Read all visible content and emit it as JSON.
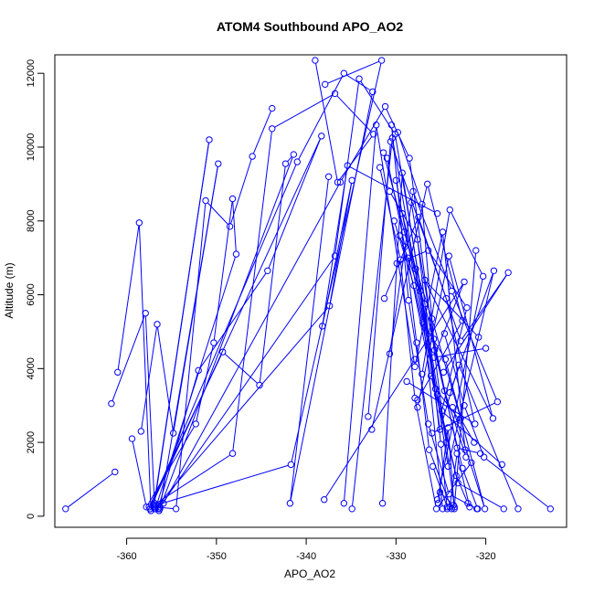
{
  "chart_data": {
    "type": "line",
    "title": "ATOM4 Southbound APO_AO2",
    "xlabel": "APO_AO2",
    "ylabel": "Altitude (m)",
    "xlim": [
      -368.0,
      -311.0
    ],
    "ylim": [
      -300,
      12500
    ],
    "xticks": [
      -360,
      -350,
      -340,
      -330,
      -320
    ],
    "xtick_labels": [
      "-360",
      "-350",
      "-340",
      "-330",
      "-320"
    ],
    "yticks": [
      0,
      2000,
      4000,
      6000,
      8000,
      10000,
      12000
    ],
    "ytick_labels": [
      "0",
      "2000",
      "4000",
      "6000",
      "8000",
      "10000",
      "12000"
    ],
    "grid": false,
    "legend": "none",
    "line_color": "#0000ff",
    "marker": "open-circle",
    "series": [
      {
        "x": [
          -366.8,
          -361.3
        ],
        "y": [
          200,
          1200
        ]
      },
      {
        "x": [
          -361.0,
          -358.6,
          -357.3,
          -356.8,
          -354.5,
          -351.2,
          -348.5,
          -346.0,
          -343.8
        ],
        "y": [
          3900,
          7950,
          150,
          250,
          200,
          8550,
          7850,
          9750,
          11050
        ]
      },
      {
        "x": [
          -361.7,
          -357.9,
          -356.9,
          -350.8,
          -357.0
        ],
        "y": [
          3050,
          5500,
          350,
          10200,
          250
        ]
      },
      {
        "x": [
          -358.4,
          -356.6,
          -354.8,
          -349.8,
          -356.3
        ],
        "y": [
          2300,
          5200,
          2250,
          9550,
          200
        ]
      },
      {
        "x": [
          -359.4,
          -357.8,
          -352.3,
          -350.3,
          -348.2,
          -347.8,
          -356.8
        ],
        "y": [
          2100,
          250,
          2500,
          4700,
          8600,
          7100,
          200
        ]
      },
      {
        "x": [
          -357.5,
          -349.3,
          -345.2,
          -342.3,
          -341.4,
          -356.4
        ],
        "y": [
          250,
          4450,
          3550,
          9550,
          9800,
          150
        ]
      },
      {
        "x": [
          -356.5,
          -352.0,
          -344.3,
          -338.3,
          -357.4
        ],
        "y": [
          200,
          3950,
          6650,
          10300,
          200
        ]
      },
      {
        "x": [
          -357.0,
          -348.2,
          -343.8,
          -336.8,
          -332.5,
          -336.5,
          -339.0
        ],
        "y": [
          300,
          1700,
          10500,
          11450,
          10350,
          9050,
          12350
        ]
      },
      {
        "x": [
          -356.7,
          -341.7,
          -331.6,
          -337.9
        ],
        "y": [
          300,
          1400,
          12350,
          11700
        ]
      },
      {
        "x": [
          -357.4,
          -341.0,
          -335.8,
          -332.6,
          -341.8,
          -337.5
        ],
        "y": [
          200,
          9600,
          12000,
          11500,
          350,
          9200
        ]
      },
      {
        "x": [
          -356.9,
          -337.4,
          -334.9,
          -338.2,
          -335.4,
          -325.4
        ],
        "y": [
          200,
          5700,
          9100,
          5150,
          9500,
          8200
        ]
      },
      {
        "x": [
          -356.3,
          -336.8,
          -334.1,
          -330.1,
          -324.4
        ],
        "y": [
          250,
          7050,
          11850,
          10350,
          2000
        ]
      },
      {
        "x": [
          -355.9,
          -336.2,
          -331.2,
          -328.5,
          -323.5,
          -321.1
        ],
        "y": [
          350,
          9050,
          11100,
          9700,
          250,
          7200
        ]
      },
      {
        "x": [
          -335.8,
          -332.2,
          -327.9,
          -324.8,
          -322.3
        ],
        "y": [
          350,
          10600,
          4050,
          7700,
          1800
        ]
      },
      {
        "x": [
          -334.9,
          -330.4,
          -325.6,
          -322.9
        ],
        "y": [
          200,
          10250,
          3450,
          2600
        ]
      },
      {
        "x": [
          -331.5,
          -329.3,
          -324.2,
          -319.1,
          -324.0
        ],
        "y": [
          350,
          9300,
          1350,
          6650,
          3350
        ]
      },
      {
        "x": [
          -338.0,
          -327.9,
          -322.4,
          -325.8,
          -320.0
        ],
        "y": [
          450,
          4250,
          6350,
          4300,
          4550
        ]
      },
      {
        "x": [
          -333.1,
          -330.6,
          -324.4,
          -321.2,
          -328.8
        ],
        "y": [
          2700,
          10150,
          5900,
          2500,
          3650
        ]
      },
      {
        "x": [
          -332.7,
          -326.5,
          -322.6,
          -327.6
        ],
        "y": [
          2350,
          9000,
          5300,
          3150
        ]
      },
      {
        "x": [
          -327.6,
          -324.1,
          -319.2,
          -326.8,
          -320.8
        ],
        "y": [
          2950,
          7050,
          2650,
          6400,
          4850
        ]
      },
      {
        "x": [
          -327.1,
          -324.0,
          -320.3,
          -325.4
        ],
        "y": [
          3850,
          8300,
          6500,
          450
        ]
      },
      {
        "x": [
          -330.7,
          -328.1,
          -323.8,
          -318.7,
          -326.0
        ],
        "y": [
          4400,
          8800,
          6100,
          3100,
          2250
        ]
      },
      {
        "x": [
          -331.3,
          -327.5,
          -322.8,
          -317.5,
          -324.7
        ],
        "y": [
          5900,
          8100,
          4750,
          6600,
          3900
        ]
      },
      {
        "x": [
          -329.9,
          -326.4,
          -322.1,
          -324.9,
          -318.2
        ],
        "y": [
          6850,
          7200,
          5650,
          2850,
          1400
        ]
      },
      {
        "x": [
          -329.1,
          -326.0,
          -322.8,
          -321.3
        ],
        "y": [
          7700,
          5350,
          2650,
          2000
        ]
      },
      {
        "x": [
          -328.3,
          -325.8,
          -323.2,
          -320.6
        ],
        "y": [
          8500,
          4800,
          1850,
          1700
        ]
      },
      {
        "x": [
          -330.0,
          -327.0,
          -324.5,
          -320.1,
          -323.7
        ],
        "y": [
          9100,
          5250,
          4250,
          200,
          2950
        ]
      },
      {
        "x": [
          -331.4,
          -327.3,
          -325.1,
          -323.0,
          -316.4
        ],
        "y": [
          9850,
          6100,
          2350,
          4100,
          200
        ]
      },
      {
        "x": [
          -331.8,
          -329.5,
          -327.9,
          -325.5,
          -321.6
        ],
        "y": [
          9450,
          6950,
          3200,
          200,
          1450
        ]
      },
      {
        "x": [
          -329.8,
          -327.1,
          -325.7,
          -322.6,
          -320.9
        ],
        "y": [
          10400,
          8450,
          4500,
          1300,
          200
        ]
      },
      {
        "x": [
          -330.5,
          -328.6,
          -326.4,
          -324.1,
          -321.0
        ],
        "y": [
          10600,
          5850,
          2500,
          600,
          200
        ]
      },
      {
        "x": [
          -331.0,
          -329.0,
          -327.7,
          -326.3,
          -323.8
        ],
        "y": [
          9700,
          7300,
          4700,
          1800,
          200
        ]
      },
      {
        "x": [
          -330.2,
          -328.0,
          -325.4,
          -323.3,
          -322.0
        ],
        "y": [
          8000,
          6250,
          3300,
          1100,
          350
        ]
      },
      {
        "x": [
          -329.6,
          -326.8,
          -324.6,
          -322.2
        ],
        "y": [
          7600,
          5750,
          3400,
          1600
        ]
      },
      {
        "x": [
          -328.7,
          -326.1,
          -323.1,
          -318.0
        ],
        "y": [
          7000,
          3800,
          900,
          200
        ]
      },
      {
        "x": [
          -330.7,
          -327.6,
          -325.0,
          -324.3
        ],
        "y": [
          8800,
          7500,
          1950,
          200
        ]
      },
      {
        "x": [
          -329.3,
          -327.8,
          -326.9,
          -324.8
        ],
        "y": [
          8200,
          6700,
          5200,
          200
        ]
      },
      {
        "x": [
          -324.6,
          -322.4,
          -320.2,
          -312.8
        ],
        "y": [
          4950,
          3000,
          1600,
          200
        ]
      },
      {
        "x": [
          -325.3,
          -324.2,
          -323.5
        ],
        "y": [
          350,
          2400,
          200
        ]
      },
      {
        "x": [
          -324.0,
          -323.2,
          -321.8
        ],
        "y": [
          250,
          1700,
          250
        ]
      },
      {
        "x": [
          -325.9,
          -324.3
        ],
        "y": [
          1350,
          250
        ]
      },
      {
        "x": [
          -325.1,
          -323.6
        ],
        "y": [
          650,
          300
        ]
      }
    ]
  }
}
